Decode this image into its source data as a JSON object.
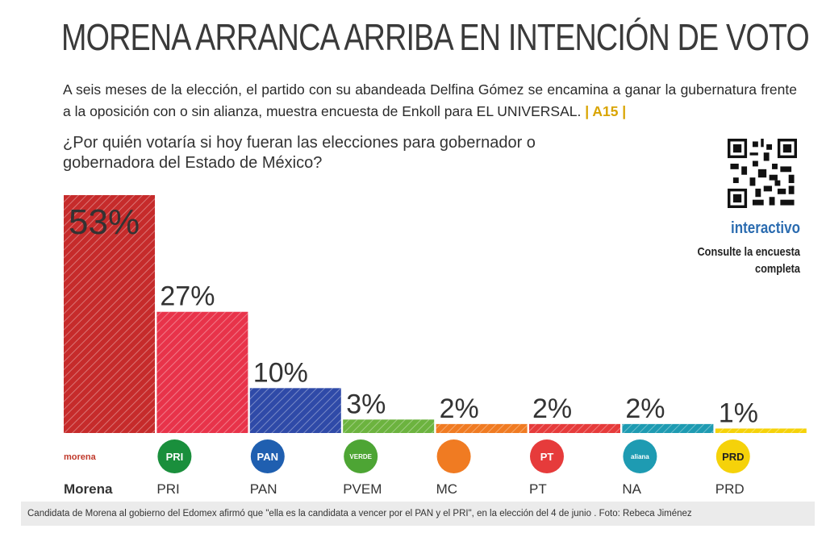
{
  "headline": "MORENA ARRANCA ARRIBA EN INTENCIÓN DE VOTO EN EDOMEX",
  "subtitle": "A seis meses de la elección, el partido con su abandeada Delfina Gómez se encamina a ganar la gubernatura frente a la oposición con o sin alianza, muestra encuesta de Enkoll para EL UNIVERSAL.",
  "page_ref": "| A15 |",
  "question": "¿Por quién votaría si hoy fueran las elecciones para gobernador o gobernadora del Estado de México?",
  "interactive": {
    "label": "interactivo",
    "text": "Consulte la encuesta completa",
    "icon": "qr-code-icon"
  },
  "caption": "Candidata de Morena al gobierno del Edomex afirmó que \"ella es la candidata a vencer por el PAN y el PRI\", en la elección del 4 de junio . Foto: Rebeca Jiménez",
  "chart_data": {
    "type": "bar",
    "categories": [
      "Morena",
      "PRI",
      "PAN",
      "PVEM",
      "MC",
      "PT",
      "NA",
      "PRD"
    ],
    "values": [
      53,
      27,
      10,
      3,
      2,
      2,
      2,
      1
    ],
    "value_labels": [
      "53%",
      "27%",
      "10%",
      "3%",
      "2%",
      "2%",
      "2%",
      "1%"
    ],
    "unit": "%",
    "ylim": [
      0,
      53
    ],
    "grid": false,
    "colors": [
      "#c62b2b",
      "#e8334a",
      "#2f4aa8",
      "#6cb33f",
      "#f07b22",
      "#e63b3b",
      "#1e9bb2",
      "#f5d20a"
    ],
    "logos": [
      {
        "name": "morena-logo",
        "text": "morena",
        "color": "#c0392b"
      },
      {
        "name": "pri-logo",
        "text": "PRI",
        "color": "#1a8f3c"
      },
      {
        "name": "pan-logo",
        "text": "PAN",
        "color": "#1f5fb0"
      },
      {
        "name": "pvem-logo",
        "text": "VERDE",
        "color": "#4da534"
      },
      {
        "name": "mc-logo",
        "text": "",
        "color": "#f07b22"
      },
      {
        "name": "pt-logo",
        "text": "PT",
        "color": "#e63b3b"
      },
      {
        "name": "na-logo",
        "text": "aliana",
        "color": "#1e9bb2"
      },
      {
        "name": "prd-logo",
        "text": "PRD",
        "color": "#f5d20a"
      }
    ]
  }
}
